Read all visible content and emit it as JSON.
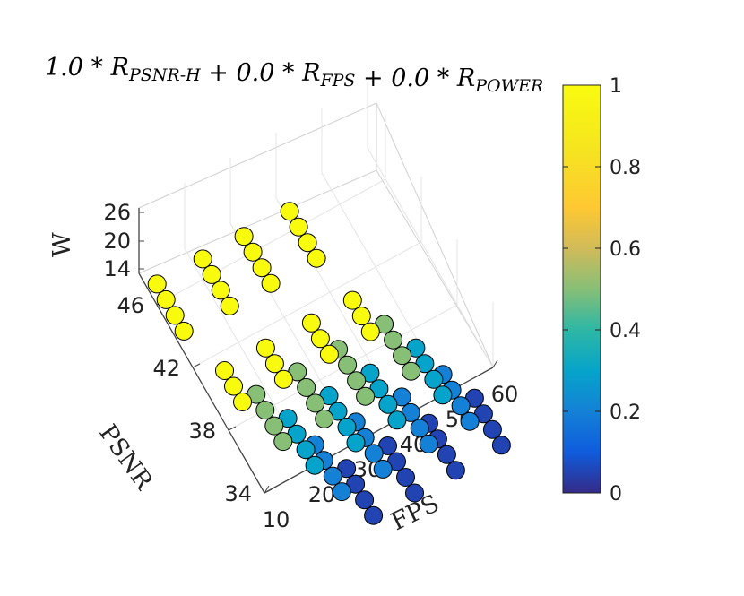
{
  "chart_data": {
    "type": "scatter",
    "title": "1.0 * R_PSNR-H + 0.0 * R_FPS + 0.0 * R_POWER",
    "xlabel": "FPS",
    "ylabel": "PSNR",
    "zlabel": "W",
    "x_ticks": [
      "10",
      "20",
      "30",
      "40",
      "50",
      "60"
    ],
    "y_ticks": [
      "34",
      "38",
      "42",
      "46"
    ],
    "z_ticks": [
      "14",
      "20",
      "26"
    ],
    "colorbar": {
      "ticks": [
        "0",
        "0.2",
        "0.4",
        "0.6",
        "0.8",
        "1"
      ],
      "range": [
        0,
        1
      ],
      "colormap": "parula"
    },
    "points": [
      {
        "x": 12,
        "y": 44,
        "c": 1.0
      },
      {
        "x": 12,
        "y": 45,
        "c": 1.0
      },
      {
        "x": 12,
        "y": 46,
        "c": 1.0
      },
      {
        "x": 12,
        "y": 47,
        "c": 1.0
      },
      {
        "x": 15,
        "y": 39,
        "c": 1.0
      },
      {
        "x": 15,
        "y": 40,
        "c": 1.0
      },
      {
        "x": 15,
        "y": 41,
        "c": 1.0
      },
      {
        "x": 18,
        "y": 36,
        "c": 0.5
      },
      {
        "x": 18,
        "y": 37,
        "c": 0.5
      },
      {
        "x": 18,
        "y": 38,
        "c": 0.5
      },
      {
        "x": 18,
        "y": 39,
        "c": 0.5
      },
      {
        "x": 21,
        "y": 34,
        "c": 0.3
      },
      {
        "x": 21,
        "y": 35,
        "c": 0.3
      },
      {
        "x": 21,
        "y": 36,
        "c": 0.3
      },
      {
        "x": 21,
        "y": 37,
        "c": 0.3
      },
      {
        "x": 23,
        "y": 32,
        "c": 0.2
      },
      {
        "x": 23,
        "y": 33,
        "c": 0.2
      },
      {
        "x": 23,
        "y": 34,
        "c": 0.2
      },
      {
        "x": 23,
        "y": 35,
        "c": 0.2
      },
      {
        "x": 26,
        "y": 30,
        "c": 0.05
      },
      {
        "x": 26,
        "y": 31,
        "c": 0.05
      },
      {
        "x": 26,
        "y": 32,
        "c": 0.05
      },
      {
        "x": 26,
        "y": 33,
        "c": 0.05
      },
      {
        "x": 22,
        "y": 44,
        "c": 1.0
      },
      {
        "x": 22,
        "y": 45,
        "c": 1.0
      },
      {
        "x": 22,
        "y": 46,
        "c": 1.0
      },
      {
        "x": 22,
        "y": 47,
        "c": 1.0
      },
      {
        "x": 24,
        "y": 39,
        "c": 1.0
      },
      {
        "x": 24,
        "y": 40,
        "c": 1.0
      },
      {
        "x": 24,
        "y": 41,
        "c": 1.0
      },
      {
        "x": 27,
        "y": 36,
        "c": 0.5
      },
      {
        "x": 27,
        "y": 37,
        "c": 0.5
      },
      {
        "x": 27,
        "y": 38,
        "c": 0.5
      },
      {
        "x": 27,
        "y": 39,
        "c": 0.5
      },
      {
        "x": 30,
        "y": 34,
        "c": 0.3
      },
      {
        "x": 30,
        "y": 35,
        "c": 0.3
      },
      {
        "x": 30,
        "y": 36,
        "c": 0.3
      },
      {
        "x": 30,
        "y": 37,
        "c": 0.3
      },
      {
        "x": 32,
        "y": 32,
        "c": 0.2
      },
      {
        "x": 32,
        "y": 33,
        "c": 0.2
      },
      {
        "x": 32,
        "y": 34,
        "c": 0.2
      },
      {
        "x": 32,
        "y": 35,
        "c": 0.2
      },
      {
        "x": 35,
        "y": 30,
        "c": 0.05
      },
      {
        "x": 35,
        "y": 31,
        "c": 0.05
      },
      {
        "x": 35,
        "y": 32,
        "c": 0.05
      },
      {
        "x": 35,
        "y": 33,
        "c": 0.05
      },
      {
        "x": 31,
        "y": 44,
        "c": 1.0
      },
      {
        "x": 31,
        "y": 45,
        "c": 1.0
      },
      {
        "x": 31,
        "y": 46,
        "c": 1.0
      },
      {
        "x": 31,
        "y": 47,
        "c": 1.0
      },
      {
        "x": 34,
        "y": 39,
        "c": 1.0
      },
      {
        "x": 34,
        "y": 40,
        "c": 1.0
      },
      {
        "x": 34,
        "y": 41,
        "c": 1.0
      },
      {
        "x": 36,
        "y": 36,
        "c": 0.5
      },
      {
        "x": 36,
        "y": 37,
        "c": 0.5
      },
      {
        "x": 36,
        "y": 38,
        "c": 0.5
      },
      {
        "x": 36,
        "y": 39,
        "c": 0.5
      },
      {
        "x": 39,
        "y": 34,
        "c": 0.3
      },
      {
        "x": 39,
        "y": 35,
        "c": 0.3
      },
      {
        "x": 39,
        "y": 36,
        "c": 0.3
      },
      {
        "x": 39,
        "y": 37,
        "c": 0.3
      },
      {
        "x": 42,
        "y": 32,
        "c": 0.2
      },
      {
        "x": 42,
        "y": 33,
        "c": 0.2
      },
      {
        "x": 42,
        "y": 34,
        "c": 0.2
      },
      {
        "x": 42,
        "y": 35,
        "c": 0.2
      },
      {
        "x": 44,
        "y": 30,
        "c": 0.05
      },
      {
        "x": 44,
        "y": 31,
        "c": 0.05
      },
      {
        "x": 44,
        "y": 32,
        "c": 0.05
      },
      {
        "x": 44,
        "y": 33,
        "c": 0.05
      },
      {
        "x": 41,
        "y": 44,
        "c": 1.0
      },
      {
        "x": 41,
        "y": 45,
        "c": 1.0
      },
      {
        "x": 41,
        "y": 46,
        "c": 1.0
      },
      {
        "x": 41,
        "y": 47,
        "c": 1.0
      },
      {
        "x": 43,
        "y": 39,
        "c": 1.0
      },
      {
        "x": 43,
        "y": 40,
        "c": 1.0
      },
      {
        "x": 43,
        "y": 41,
        "c": 1.0
      },
      {
        "x": 46,
        "y": 36,
        "c": 0.5
      },
      {
        "x": 46,
        "y": 37,
        "c": 0.5
      },
      {
        "x": 46,
        "y": 38,
        "c": 0.5
      },
      {
        "x": 46,
        "y": 39,
        "c": 0.5
      },
      {
        "x": 49,
        "y": 34,
        "c": 0.3
      },
      {
        "x": 49,
        "y": 35,
        "c": 0.3
      },
      {
        "x": 49,
        "y": 36,
        "c": 0.3
      },
      {
        "x": 49,
        "y": 37,
        "c": 0.3
      },
      {
        "x": 51,
        "y": 32,
        "c": 0.2
      },
      {
        "x": 51,
        "y": 33,
        "c": 0.2
      },
      {
        "x": 51,
        "y": 34,
        "c": 0.2
      },
      {
        "x": 51,
        "y": 35,
        "c": 0.2
      },
      {
        "x": 54,
        "y": 30,
        "c": 0.05
      },
      {
        "x": 54,
        "y": 31,
        "c": 0.05
      },
      {
        "x": 54,
        "y": 32,
        "c": 0.05
      },
      {
        "x": 54,
        "y": 33,
        "c": 0.05
      }
    ]
  }
}
